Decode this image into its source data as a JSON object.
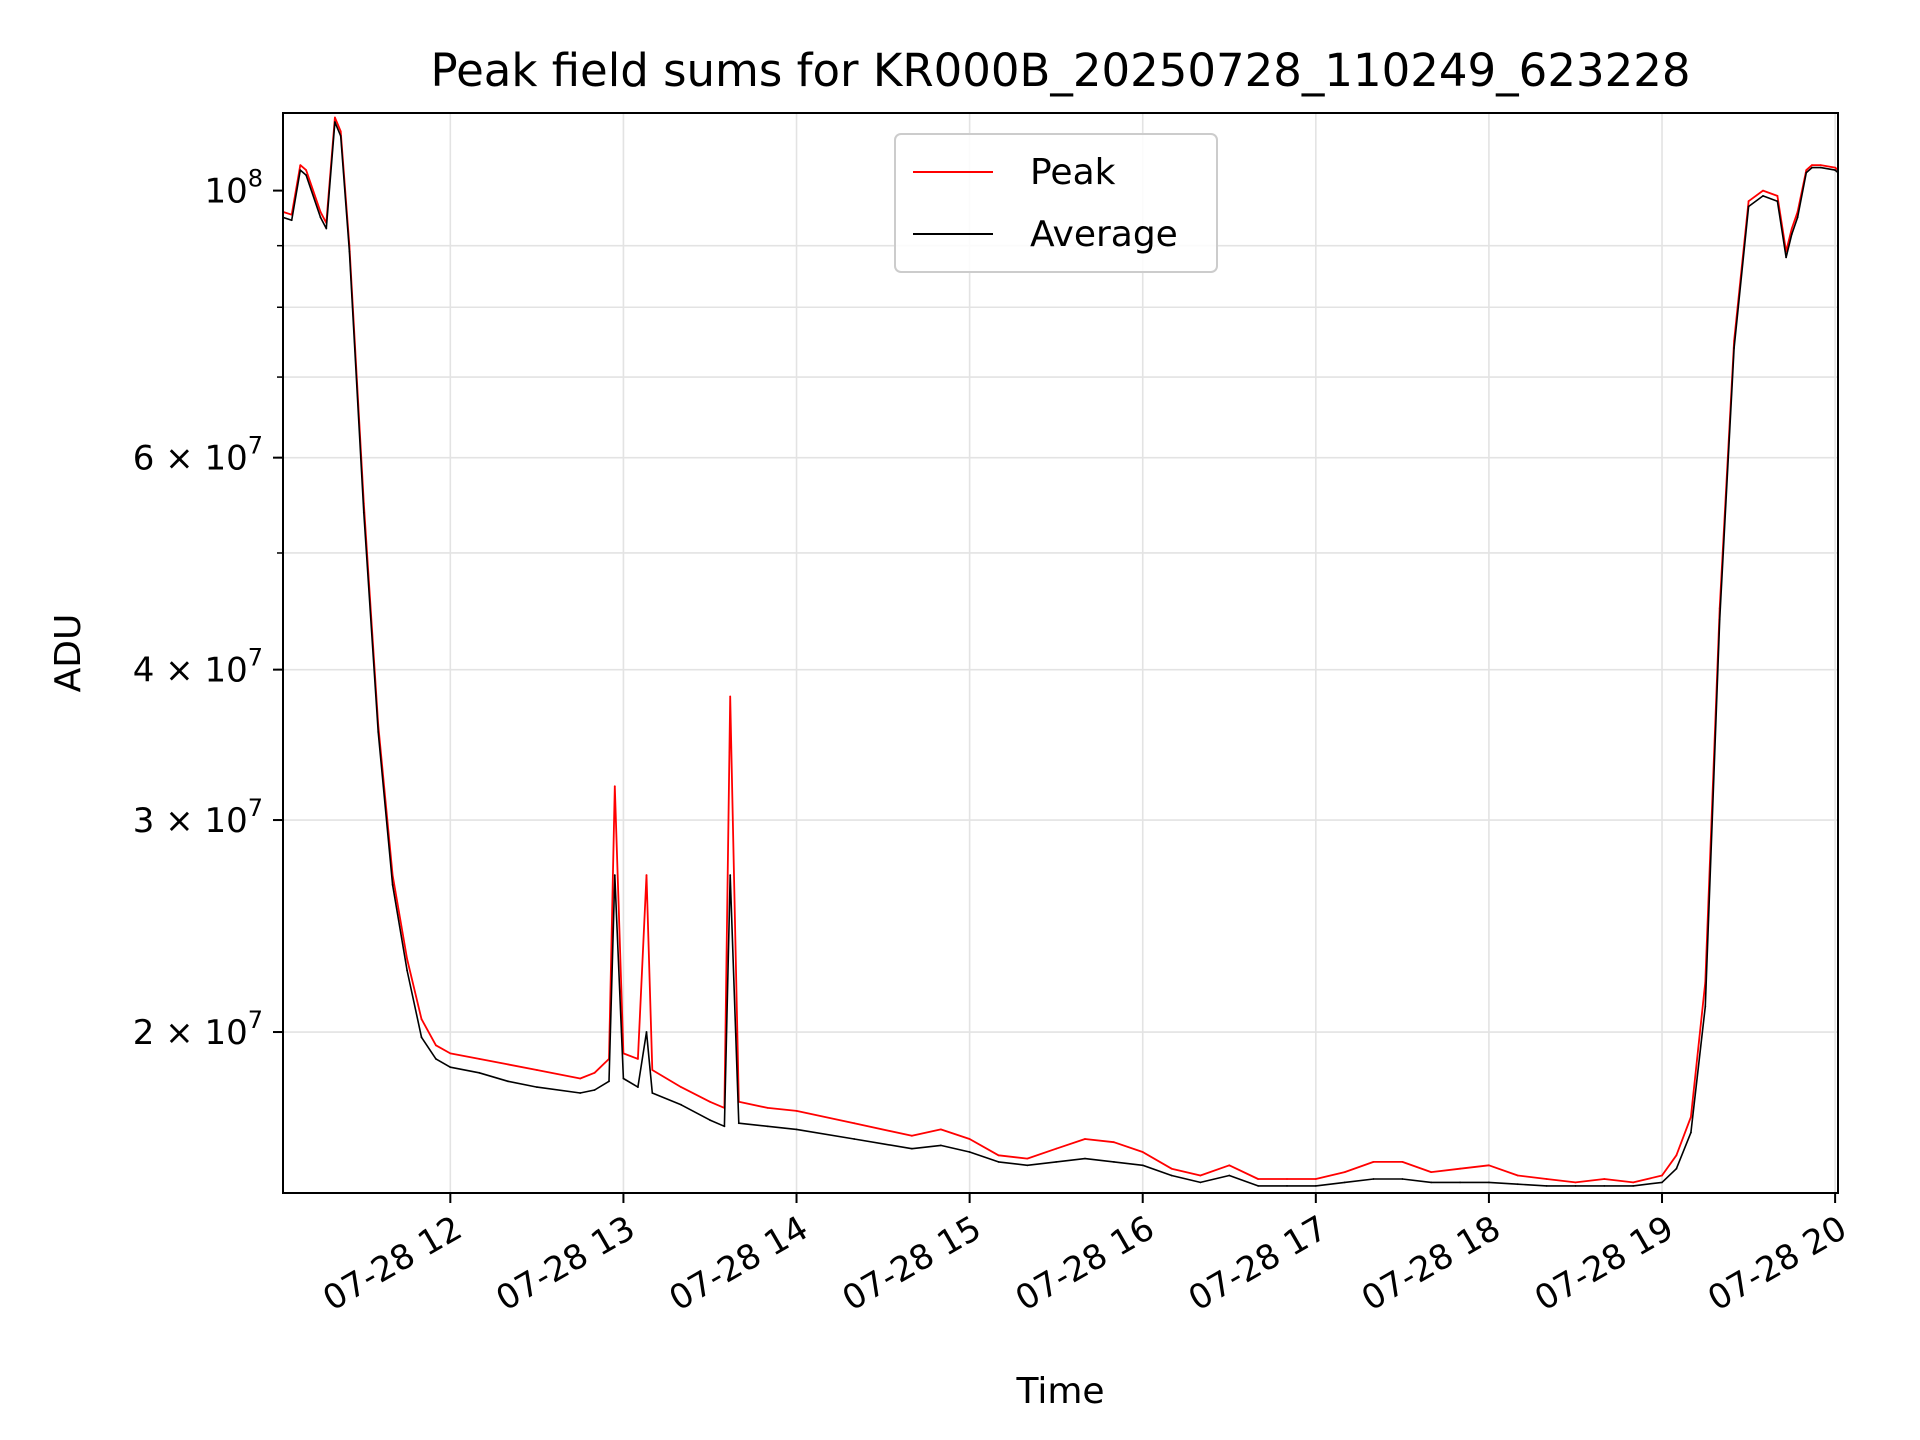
{
  "chart_data": {
    "type": "line",
    "title": "Peak field sums for KR000B_20250728_110249_623228",
    "xlabel": "Time",
    "ylabel": "ADU",
    "yscale": "log",
    "xlim": [
      "2025-07-28 11:02",
      "2025-07-28 20:01"
    ],
    "ylim": [
      14700000,
      116000000
    ],
    "grid": true,
    "legend_placement": "upper center",
    "x_tick_labels": [
      "07-28 12",
      "07-28 13",
      "07-28 14",
      "07-28 15",
      "07-28 16",
      "07-28 17",
      "07-28 18",
      "07-28 19",
      "07-28 20"
    ],
    "y_tick_labels": [
      {
        "value": 100000000,
        "mantissa": "",
        "base": "10",
        "exp": "8"
      },
      {
        "value": 60000000,
        "mantissa": "6",
        "base": "10",
        "exp": "7"
      },
      {
        "value": 40000000,
        "mantissa": "4",
        "base": "10",
        "exp": "7"
      },
      {
        "value": 30000000,
        "mantissa": "3",
        "base": "10",
        "exp": "7"
      },
      {
        "value": 20000000,
        "mantissa": "2",
        "base": "10",
        "exp": "7"
      }
    ],
    "series": [
      {
        "name": "Peak",
        "color": "#ff0000",
        "x": [
          "11:02",
          "11:05",
          "11:08",
          "11:10",
          "11:15",
          "11:17",
          "11:20",
          "11:22",
          "11:25",
          "11:30",
          "11:35",
          "11:40",
          "11:45",
          "11:50",
          "11:55",
          "12:00",
          "12:10",
          "12:20",
          "12:30",
          "12:45",
          "12:50",
          "12:55",
          "12:57",
          "13:00",
          "13:05",
          "13:08",
          "13:10",
          "13:20",
          "13:30",
          "13:35",
          "13:37",
          "13:40",
          "13:50",
          "14:00",
          "14:20",
          "14:40",
          "14:50",
          "15:00",
          "15:10",
          "15:20",
          "15:30",
          "15:40",
          "15:50",
          "16:00",
          "16:10",
          "16:20",
          "16:30",
          "16:40",
          "16:50",
          "17:00",
          "17:10",
          "17:20",
          "17:30",
          "17:40",
          "17:50",
          "18:00",
          "18:10",
          "18:20",
          "18:30",
          "18:40",
          "18:50",
          "19:00",
          "19:05",
          "19:10",
          "19:15",
          "19:20",
          "19:25",
          "19:30",
          "19:35",
          "19:40",
          "19:43",
          "19:45",
          "19:47",
          "19:50",
          "19:52",
          "19:55",
          "20:00",
          "20:01"
        ],
        "y": [
          96000000,
          95500000,
          105000000,
          104000000,
          96000000,
          94000000,
          115000000,
          112000000,
          90000000,
          55000000,
          36000000,
          27000000,
          23000000,
          20500000,
          19500000,
          19200000,
          19000000,
          18800000,
          18600000,
          18300000,
          18500000,
          19000000,
          32000000,
          19200000,
          19000000,
          27000000,
          18600000,
          18000000,
          17500000,
          17300000,
          38000000,
          17500000,
          17300000,
          17200000,
          16800000,
          16400000,
          16600000,
          16300000,
          15800000,
          15700000,
          16000000,
          16300000,
          16200000,
          15900000,
          15400000,
          15200000,
          15500000,
          15100000,
          15100000,
          15100000,
          15300000,
          15600000,
          15600000,
          15300000,
          15400000,
          15500000,
          15200000,
          15100000,
          15000000,
          15100000,
          15000000,
          15200000,
          15800000,
          17000000,
          22000000,
          45000000,
          75000000,
          98000000,
          100000000,
          99000000,
          89000000,
          93000000,
          96000000,
          104000000,
          105000000,
          105000000,
          104500000,
          104000000
        ]
      },
      {
        "name": "Average",
        "color": "#000000",
        "x": [
          "11:02",
          "11:05",
          "11:08",
          "11:10",
          "11:15",
          "11:17",
          "11:20",
          "11:22",
          "11:25",
          "11:30",
          "11:35",
          "11:40",
          "11:45",
          "11:50",
          "11:55",
          "12:00",
          "12:10",
          "12:20",
          "12:30",
          "12:45",
          "12:50",
          "12:55",
          "12:57",
          "13:00",
          "13:05",
          "13:08",
          "13:10",
          "13:20",
          "13:30",
          "13:35",
          "13:37",
          "13:40",
          "13:50",
          "14:00",
          "14:20",
          "14:40",
          "14:50",
          "15:00",
          "15:10",
          "15:20",
          "15:30",
          "15:40",
          "15:50",
          "16:00",
          "16:10",
          "16:20",
          "16:30",
          "16:40",
          "16:50",
          "17:00",
          "17:10",
          "17:20",
          "17:30",
          "17:40",
          "17:50",
          "18:00",
          "18:10",
          "18:20",
          "18:30",
          "18:40",
          "18:50",
          "19:00",
          "19:05",
          "19:10",
          "19:15",
          "19:20",
          "19:25",
          "19:30",
          "19:35",
          "19:40",
          "19:43",
          "19:45",
          "19:47",
          "19:50",
          "19:52",
          "19:55",
          "20:00",
          "20:01"
        ],
        "y": [
          95000000,
          94500000,
          104000000,
          103000000,
          95000000,
          93000000,
          114000000,
          111000000,
          89000000,
          54000000,
          35500000,
          26500000,
          22500000,
          19800000,
          19000000,
          18700000,
          18500000,
          18200000,
          18000000,
          17800000,
          17900000,
          18200000,
          27000000,
          18300000,
          18000000,
          20000000,
          17800000,
          17400000,
          16900000,
          16700000,
          27000000,
          16800000,
          16700000,
          16600000,
          16300000,
          16000000,
          16100000,
          15900000,
          15600000,
          15500000,
          15600000,
          15700000,
          15600000,
          15500000,
          15200000,
          15000000,
          15200000,
          14900000,
          14900000,
          14900000,
          15000000,
          15100000,
          15100000,
          15000000,
          15000000,
          15000000,
          14950000,
          14900000,
          14900000,
          14900000,
          14900000,
          15000000,
          15400000,
          16500000,
          21000000,
          44000000,
          74000000,
          97000000,
          99000000,
          98000000,
          88000000,
          92000000,
          95000000,
          103500000,
          104500000,
          104500000,
          104000000,
          103500000
        ]
      }
    ]
  }
}
